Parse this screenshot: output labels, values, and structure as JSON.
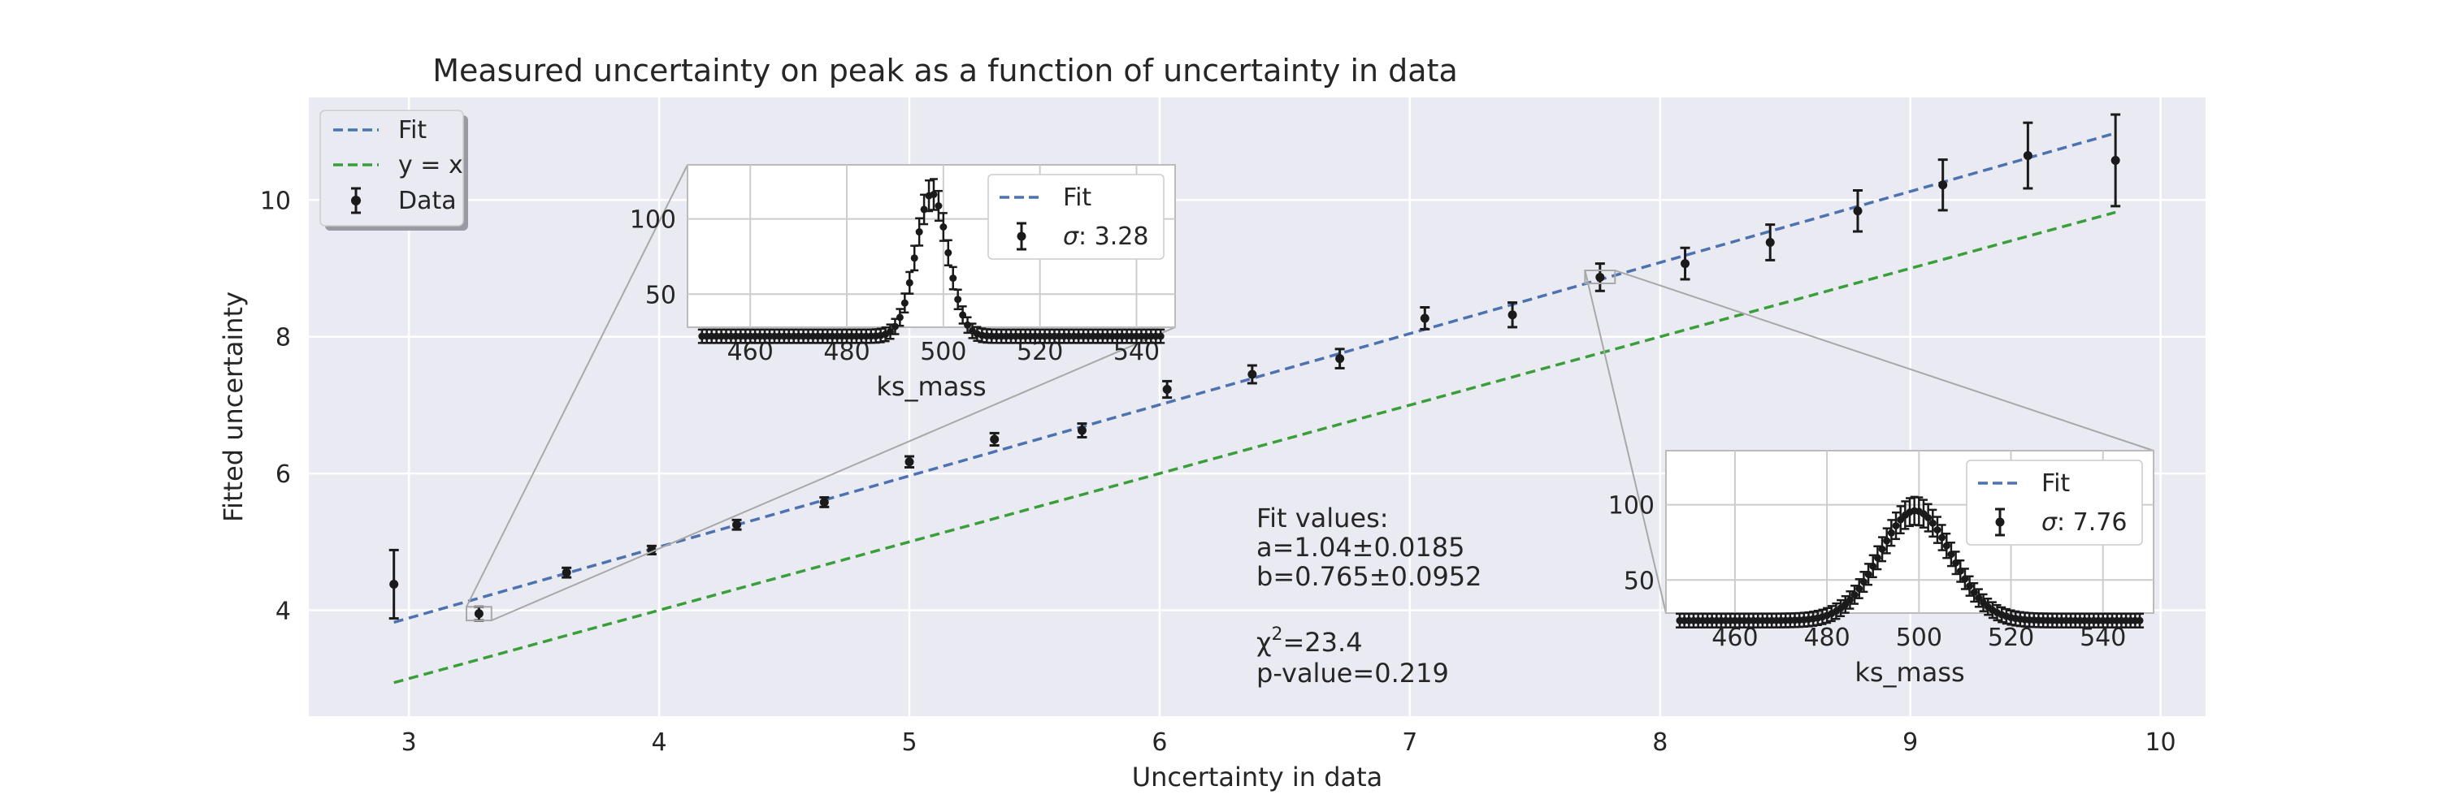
{
  "chart_data": [
    {
      "type": "scatter",
      "role": "main",
      "title": "Measured uncertainty on peak as a function of uncertainty in data",
      "xlabel": "Uncertainty in data",
      "ylabel": "Fitted uncertainty",
      "xlim": [
        2.6,
        10.18
      ],
      "ylim": [
        2.45,
        11.5
      ],
      "xticks": [
        3,
        4,
        5,
        6,
        7,
        8,
        9,
        10
      ],
      "yticks": [
        4,
        6,
        8,
        10
      ],
      "grid": true,
      "legend_position": "top-left",
      "legend": [
        "Fit",
        "y = x",
        "Data"
      ],
      "colors": {
        "fit": "#4c72b0",
        "identity": "#3a9e3a",
        "data": "#1a1a1a",
        "background": "#eaeaf2"
      },
      "series": [
        {
          "name": "Data",
          "kind": "errorbar",
          "x": [
            2.94,
            3.28,
            3.63,
            3.97,
            4.31,
            4.66,
            5.0,
            5.34,
            5.69,
            6.03,
            6.37,
            6.72,
            7.06,
            7.41,
            7.76,
            8.1,
            8.44,
            8.79,
            9.13,
            9.47,
            9.82
          ],
          "y": [
            4.38,
            3.95,
            4.55,
            4.88,
            5.25,
            5.58,
            6.17,
            6.5,
            6.63,
            7.23,
            7.45,
            7.68,
            8.27,
            8.32,
            8.87,
            9.07,
            9.38,
            9.84,
            10.22,
            10.65,
            10.58
          ],
          "yerr": [
            0.5,
            0.1,
            0.07,
            0.06,
            0.07,
            0.07,
            0.08,
            0.09,
            0.1,
            0.12,
            0.13,
            0.14,
            0.16,
            0.18,
            0.2,
            0.23,
            0.26,
            0.3,
            0.37,
            0.48,
            0.67
          ]
        },
        {
          "name": "Fit",
          "kind": "line",
          "x": [
            2.94,
            9.82
          ],
          "y": [
            3.823,
            10.978
          ]
        },
        {
          "name": "y = x",
          "kind": "line",
          "x": [
            2.94,
            9.82
          ],
          "y": [
            2.94,
            9.82
          ]
        }
      ],
      "annotations": {
        "fit_header": "Fit values:",
        "a_value": "a=1.04±0.0185",
        "b_value": "b=0.765±0.0952",
        "chi2_symbol": "χ",
        "chi2_sup": "2",
        "chi2_value": "=23.4",
        "p_value": "p-value=0.219"
      },
      "zoom_regions": [
        {
          "x": [
            3.23,
            3.33
          ],
          "y": [
            3.85,
            4.05
          ]
        },
        {
          "x": [
            7.7,
            7.82
          ],
          "y": [
            8.78,
            8.97
          ]
        }
      ]
    },
    {
      "type": "scatter",
      "role": "inset",
      "xlabel": "ks_mass",
      "xlim": [
        447,
        548
      ],
      "ylim": [
        28,
        136
      ],
      "xticks": [
        460,
        480,
        500,
        520,
        540
      ],
      "yticks": [
        50,
        100
      ],
      "legend": [
        "Fit",
        "σ: 3.28"
      ],
      "legend_position": "top-right",
      "sigma": 3.28,
      "mu": 497.6,
      "amplitude": 95,
      "baseline": 22,
      "peak_point_offset": [
        1,
        6,
        2,
        8,
        3,
        5,
        0,
        4
      ]
    },
    {
      "type": "scatter",
      "role": "inset",
      "xlabel": "ks_mass",
      "xlim": [
        445,
        551
      ],
      "ylim": [
        28,
        136
      ],
      "xticks": [
        460,
        480,
        500,
        520,
        540
      ],
      "yticks": [
        50,
        100
      ],
      "legend": [
        "Fit",
        "σ: 7.76"
      ],
      "legend_position": "top-right",
      "sigma": 7.76,
      "mu": 499.2,
      "amplitude": 73,
      "baseline": 23,
      "peak_point_offset": [
        2,
        5,
        1,
        7,
        3,
        6,
        0,
        4
      ]
    }
  ],
  "legend_labels": {
    "fit": "Fit",
    "identity": "y = x",
    "data": "Data"
  },
  "inset_labels": {
    "left_fit": "Fit",
    "left_sigma_symbol": "σ",
    "left_sigma_text": ": 3.28",
    "right_fit": "Fit",
    "right_sigma_symbol": "σ",
    "right_sigma_text": ": 7.76"
  }
}
